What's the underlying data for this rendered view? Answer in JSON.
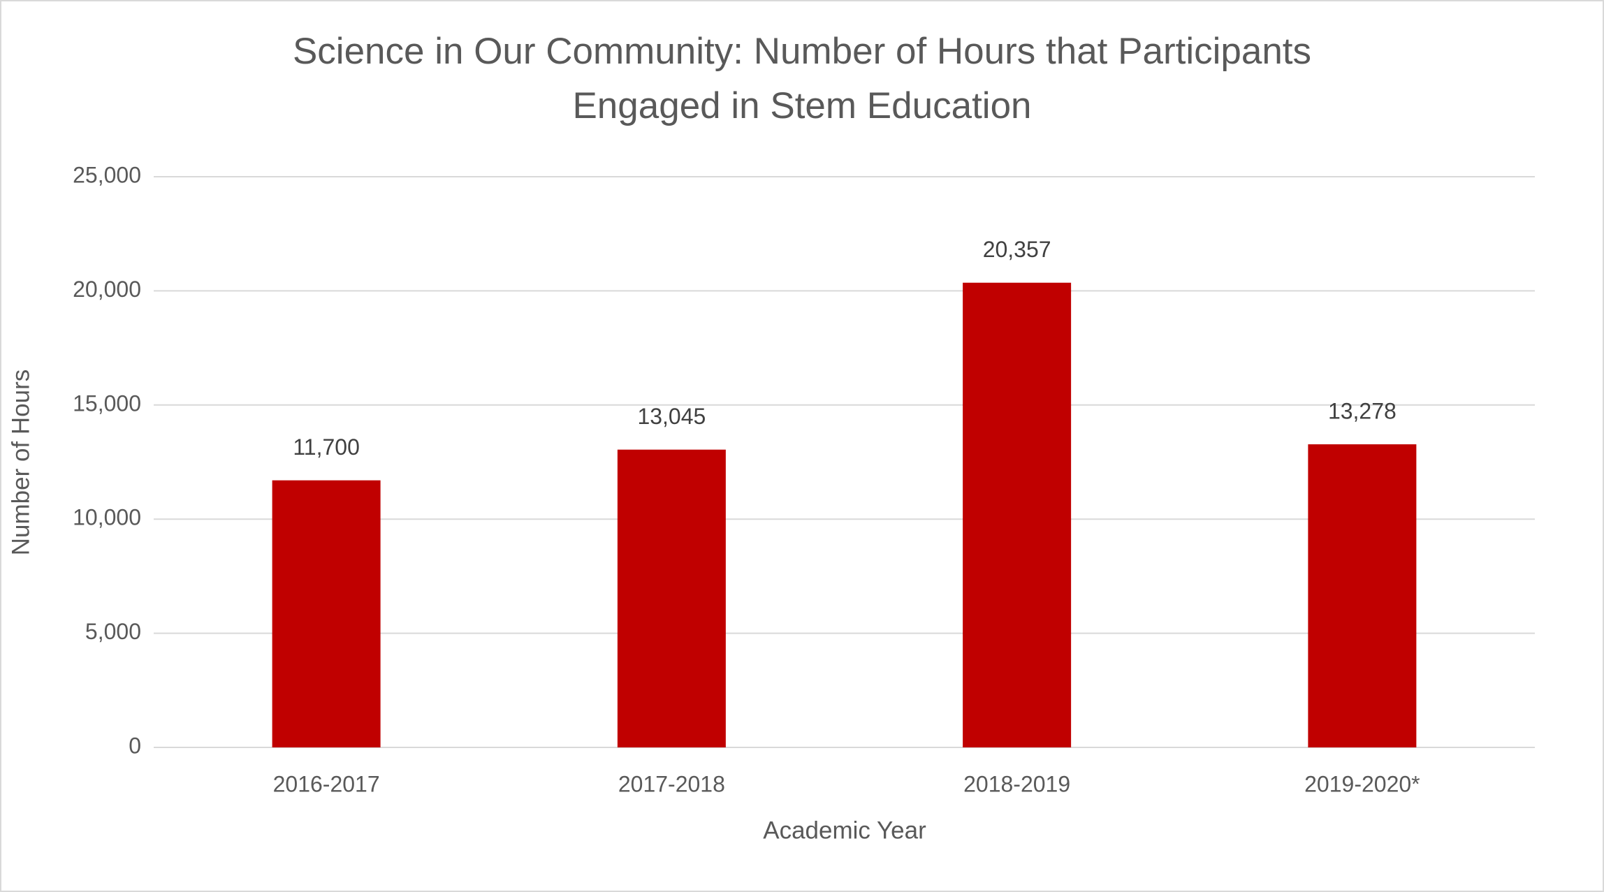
{
  "chart_data": {
    "type": "bar",
    "title": [
      "Science in Our Community: Number of Hours that Participants",
      "Engaged in Stem Education"
    ],
    "x_label": "Academic Year",
    "y_label": "Number of Hours",
    "categories": [
      "2016-2017",
      "2017-2018",
      "2018-2019",
      "2019-2020*"
    ],
    "values": [
      11700,
      13045,
      20357,
      13278
    ],
    "value_labels": [
      "11,700",
      "13,045",
      "20,357",
      "13,278"
    ],
    "color": "#c00000",
    "ylim": [
      0,
      25000
    ],
    "yticks": [
      0,
      {
        "value": 5000,
        "label": "5,000"
      },
      {
        "value": 10000,
        "label": "10,000"
      },
      {
        "value": 15000,
        "label": "15,000"
      },
      {
        "value": 20000,
        "label": "20,000"
      },
      {
        "value": 25000,
        "label": "25,000"
      }
    ],
    "grid": true
  }
}
